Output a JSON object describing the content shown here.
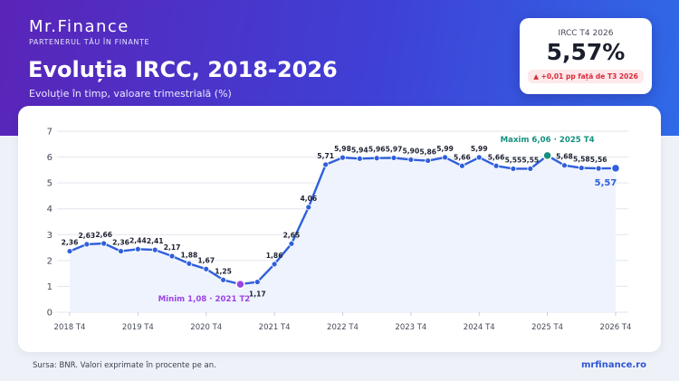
{
  "brand": {
    "name": "Mr.Finance",
    "tagline": "PARTENERUL TĂU ÎN FINANȚE"
  },
  "header": {
    "title": "Evoluția IRCC, 2018-2026",
    "subtitle": "Evoluție în timp, valoare trimestrială (%)"
  },
  "kpi": {
    "label": "IRCC T4 2026",
    "value": "5,57%",
    "change": "▲ +0,01 pp față de T3 2026"
  },
  "footer": {
    "source": "Sursa: BNR. Valori exprimate în procente pe an.",
    "site": "mrfinance.ro"
  },
  "colors": {
    "line": "#2f5fdb",
    "area": "#eef3fd",
    "min_marker": "#9b45e4",
    "max_marker": "#15907e",
    "grid": "#e3e6ee"
  },
  "chart_data": {
    "type": "line",
    "title": "",
    "xlabel": "",
    "ylabel": "",
    "ylim": [
      0,
      7
    ],
    "yticks": [
      0,
      1,
      2,
      3,
      4,
      5,
      6,
      7
    ],
    "grid": "horizontal",
    "x_tick_labels": [
      "2018 T4",
      "2019 T4",
      "2020 T4",
      "2021 T4",
      "2022 T4",
      "2023 T4",
      "2024 T4",
      "2025 T4",
      "2026 T4"
    ],
    "x_tick_positions": [
      0,
      4,
      8,
      12,
      16,
      20,
      24,
      28,
      32
    ],
    "values": [
      2.36,
      2.63,
      2.66,
      2.36,
      2.44,
      2.41,
      2.17,
      1.88,
      1.67,
      1.25,
      1.08,
      1.17,
      1.86,
      2.65,
      4.06,
      5.71,
      5.98,
      5.94,
      5.96,
      5.97,
      5.9,
      5.86,
      5.99,
      5.66,
      5.99,
      5.66,
      5.55,
      5.55,
      6.06,
      5.68,
      5.58,
      5.56,
      5.57
    ],
    "point_labels": [
      "2,36",
      "2,63",
      "2,66",
      "2,36",
      "2,44",
      "2,41",
      "2,17",
      "1,88",
      "1,67",
      "1,25",
      "",
      "1,17",
      "1,86",
      "2,65",
      "4,06",
      "5,71",
      "5,98",
      "5,94",
      "5,96",
      "5,97",
      "5,90",
      "5,86",
      "5,99",
      "5,66",
      "5,99",
      "5,66",
      "5,55",
      "5,55",
      "",
      "5,68",
      "5,58",
      "5,56",
      "5,57"
    ],
    "annotations": {
      "min": {
        "index": 10,
        "text": "Minim 1,08 · 2021 T2"
      },
      "max": {
        "index": 28,
        "text": "Maxim 6,06 · 2025 T4"
      }
    }
  }
}
